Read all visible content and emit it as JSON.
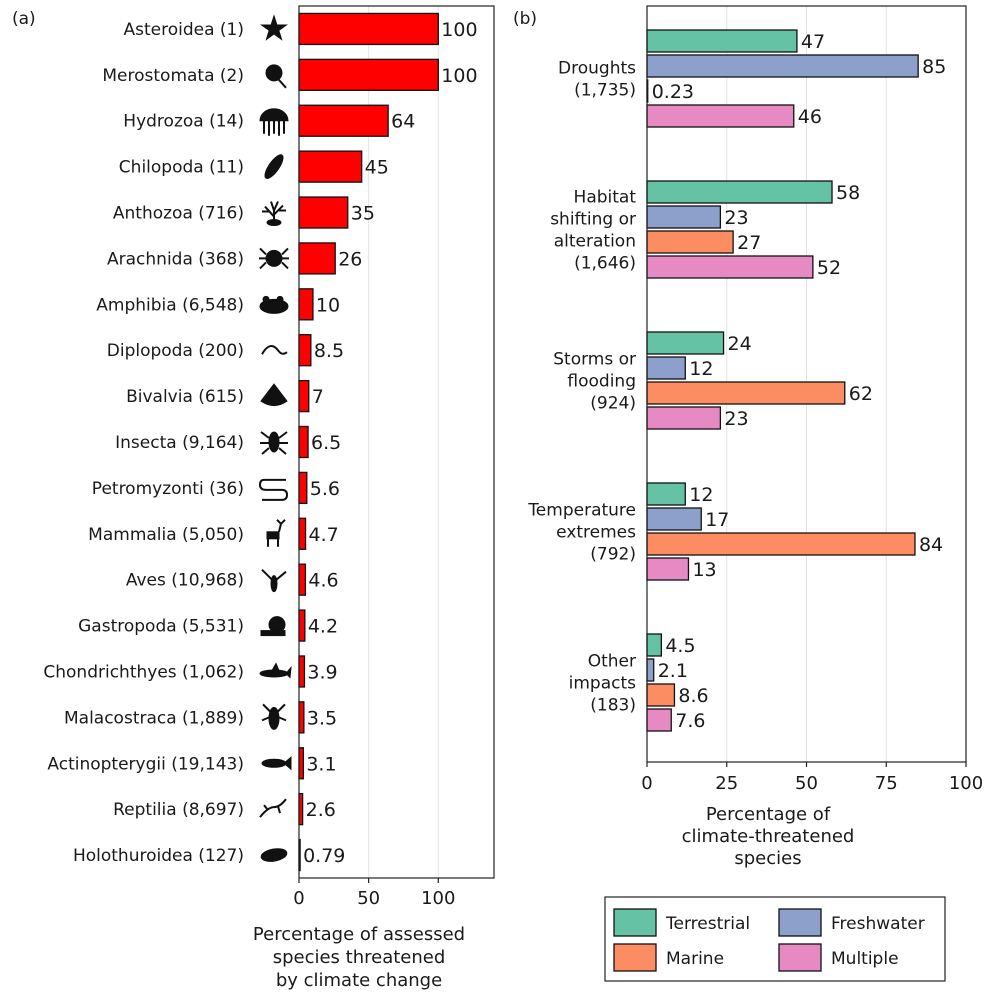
{
  "chart_data": [
    {
      "panel": "(a)",
      "type": "bar",
      "orientation": "horizontal",
      "categories": [
        "Asteroidea (1)",
        "Merostomata (2)",
        "Hydrozoa (14)",
        "Chilopoda (11)",
        "Anthozoa (716)",
        "Arachnida (368)",
        "Amphibia (6,548)",
        "Diplopoda (200)",
        "Bivalvia (615)",
        "Insecta (9,164)",
        "Petromyzonti (36)",
        "Mammalia (5,050)",
        "Aves (10,968)",
        "Gastropoda (5,531)",
        "Chondrichthyes (1,062)",
        "Malacostraca (1,889)",
        "Actinopterygii (19,143)",
        "Reptilia (8,697)",
        "Holothuroidea (127)"
      ],
      "values": [
        100,
        100,
        64,
        45,
        35,
        26,
        10,
        8.5,
        7,
        6.5,
        5.6,
        4.7,
        4.6,
        4.2,
        3.9,
        3.5,
        3.1,
        2.6,
        0.79
      ],
      "value_labels": [
        "100",
        "100",
        "64",
        "45",
        "35",
        "26",
        "10",
        "8.5",
        "7",
        "6.5",
        "5.6",
        "4.7",
        "4.6",
        "4.2",
        "3.9",
        "3.5",
        "3.1",
        "2.6",
        "0.79"
      ],
      "icons": [
        "star-icon",
        "horseshoe-crab-icon",
        "jellyfish-icon",
        "centipede-icon",
        "coral-icon",
        "spider-icon",
        "frog-icon",
        "millipede-icon",
        "shell-icon",
        "insect-icon",
        "lamprey-icon",
        "deer-icon",
        "bird-icon",
        "snail-icon",
        "shark-icon",
        "lobster-icon",
        "fish-icon",
        "lizard-icon",
        "sea-cucumber-icon"
      ],
      "color": "#ff0000",
      "xlabel": "Percentage of assessed species threatened by climate change",
      "xlabel_lines": [
        "Percentage of assessed",
        "species threatened",
        "by climate change"
      ],
      "xlim": [
        0,
        140
      ],
      "xticks": [
        0,
        50,
        100
      ],
      "grid": true
    },
    {
      "panel": "(b)",
      "type": "bar",
      "orientation": "horizontal",
      "groups": [
        {
          "label_lines": [
            "Droughts",
            "(1,735)"
          ],
          "values": [
            47,
            85,
            0.23,
            46
          ],
          "labels": [
            "47",
            "85",
            "0.23",
            "46"
          ]
        },
        {
          "label_lines": [
            "Habitat",
            "shifting or",
            "alteration",
            "(1,646)"
          ],
          "values": [
            58,
            23,
            27,
            52
          ],
          "labels": [
            "58",
            "23",
            "27",
            "52"
          ]
        },
        {
          "label_lines": [
            "Storms or",
            "flooding",
            "(924)"
          ],
          "values": [
            24,
            12,
            62,
            23
          ],
          "labels": [
            "24",
            "12",
            "62",
            "23"
          ]
        },
        {
          "label_lines": [
            "Temperature",
            "extremes",
            "(792)"
          ],
          "values": [
            12,
            17,
            84,
            13
          ],
          "labels": [
            "12",
            "17",
            "84",
            "13"
          ]
        },
        {
          "label_lines": [
            "Other",
            "impacts",
            "(183)"
          ],
          "values": [
            4.5,
            2.1,
            8.6,
            7.6
          ],
          "labels": [
            "4.5",
            "2.1",
            "8.6",
            "7.6"
          ]
        }
      ],
      "series": [
        {
          "name": "Terrestrial",
          "color": "#66c2a5"
        },
        {
          "name": "Freshwater",
          "color": "#8da0cb"
        },
        {
          "name": "Marine",
          "color": "#fc8d62"
        },
        {
          "name": "Multiple",
          "color": "#e78ac3"
        }
      ],
      "xlabel": "Percentage of climate-threatened species",
      "xlabel_lines": [
        "Percentage of",
        "climate-threatened",
        "species"
      ],
      "xlim": [
        0,
        100
      ],
      "xticks": [
        0,
        25,
        50,
        75,
        100
      ],
      "grid": true,
      "legend_position": "bottom"
    }
  ]
}
